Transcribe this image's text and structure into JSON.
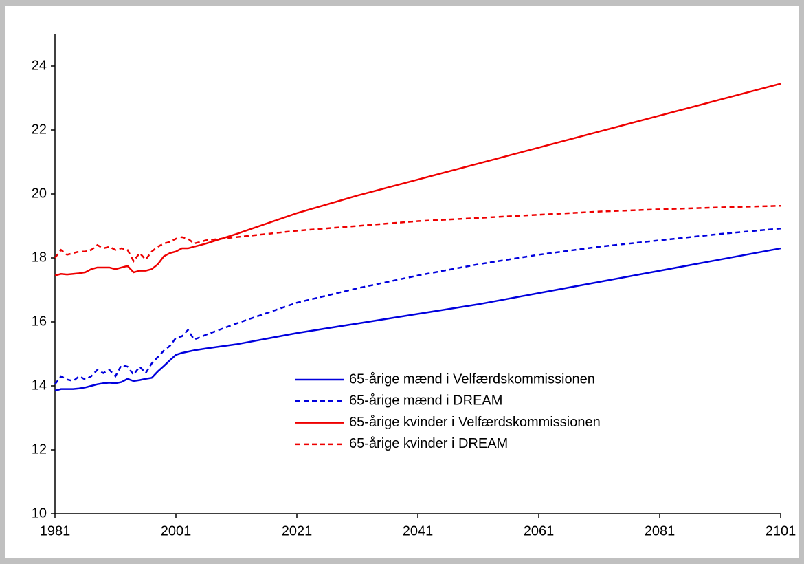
{
  "chart_data": {
    "type": "line",
    "x": [
      1981,
      1982,
      1983,
      1984,
      1985,
      1986,
      1987,
      1988,
      1989,
      1990,
      1991,
      1992,
      1993,
      1994,
      1995,
      1996,
      1997,
      1998,
      1999,
      2000,
      2001,
      2002,
      2003,
      2004,
      2005,
      2006,
      2011,
      2021,
      2031,
      2041,
      2051,
      2061,
      2071,
      2081,
      2091,
      2101
    ],
    "series": [
      {
        "name": "65-årige mænd i Velfærdskommissionen",
        "color": "#0000dd",
        "style": "solid",
        "values": [
          13.85,
          13.9,
          13.9,
          13.9,
          13.92,
          13.95,
          14.0,
          14.05,
          14.08,
          14.1,
          14.08,
          14.12,
          14.22,
          14.15,
          14.18,
          14.22,
          14.25,
          14.45,
          14.62,
          14.8,
          14.97,
          15.03,
          15.07,
          15.11,
          15.14,
          15.17,
          15.3,
          15.65,
          15.95,
          16.25,
          16.55,
          16.9,
          17.25,
          17.6,
          17.95,
          18.3
        ]
      },
      {
        "name": "65-årige mænd i DREAM",
        "color": "#0000dd",
        "style": "dashed",
        "values": [
          14.05,
          14.3,
          14.2,
          14.15,
          14.3,
          14.2,
          14.3,
          14.5,
          14.4,
          14.5,
          14.3,
          14.65,
          14.6,
          14.35,
          14.6,
          14.4,
          14.7,
          14.9,
          15.1,
          15.25,
          15.5,
          15.55,
          15.75,
          15.45,
          15.52,
          15.6,
          15.95,
          16.6,
          17.05,
          17.45,
          17.8,
          18.1,
          18.35,
          18.55,
          18.75,
          18.92
        ]
      },
      {
        "name": "65-årige kvinder i Velfærdskommissionen",
        "color": "#ee0000",
        "style": "solid",
        "values": [
          17.45,
          17.5,
          17.48,
          17.5,
          17.52,
          17.55,
          17.65,
          17.7,
          17.7,
          17.7,
          17.65,
          17.7,
          17.75,
          17.55,
          17.6,
          17.6,
          17.65,
          17.8,
          18.05,
          18.15,
          18.2,
          18.3,
          18.3,
          18.35,
          18.4,
          18.45,
          18.75,
          19.4,
          19.95,
          20.45,
          20.95,
          21.45,
          21.95,
          22.45,
          22.95,
          23.45
        ]
      },
      {
        "name": "65-årige kvinder i DREAM",
        "color": "#ee0000",
        "style": "dashed",
        "values": [
          18.0,
          18.25,
          18.1,
          18.15,
          18.2,
          18.2,
          18.25,
          18.4,
          18.3,
          18.35,
          18.25,
          18.3,
          18.25,
          17.9,
          18.15,
          17.95,
          18.2,
          18.35,
          18.45,
          18.5,
          18.6,
          18.65,
          18.6,
          18.45,
          18.5,
          18.55,
          18.65,
          18.85,
          19.0,
          19.15,
          19.25,
          19.35,
          19.45,
          19.52,
          19.58,
          19.63
        ]
      }
    ],
    "xlim": [
      1981,
      2101
    ],
    "xticks": [
      1981,
      2001,
      2021,
      2041,
      2061,
      2081,
      2101
    ],
    "ylim": [
      10,
      25
    ],
    "yticks": [
      10,
      12,
      14,
      16,
      18,
      20,
      22,
      24
    ],
    "grid": false
  }
}
